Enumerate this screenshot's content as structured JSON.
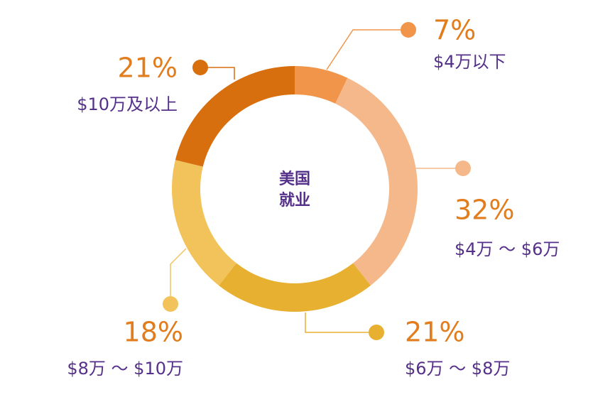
{
  "chart_data": {
    "type": "donut",
    "center_lines": [
      "美国",
      "就业"
    ],
    "categories": [
      "$4万以下",
      "$4万 ～ $6万",
      "$6万 ～ $8万",
      "$8万 ～ $10万",
      "$10万及以上"
    ],
    "values": [
      7,
      32,
      21,
      18,
      21
    ],
    "value_labels": [
      "7%",
      "32%",
      "21%",
      "18%",
      "21%"
    ],
    "colors": [
      "#f0954a",
      "#f4b88a",
      "#e8b030",
      "#f2c35a",
      "#d86f0e"
    ]
  }
}
